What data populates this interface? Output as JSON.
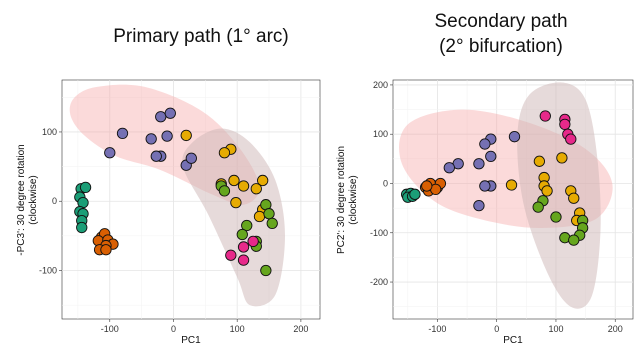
{
  "chart_data": [
    {
      "type": "scatter",
      "title": "Primary path (1° arc)",
      "xlabel": "PC1",
      "ylabel": [
        "-PC3': 30 degree rotation",
        "(clockwise)"
      ],
      "xlim": [
        -175,
        230
      ],
      "ylim": [
        -170,
        175
      ],
      "xticks": [
        -100,
        0,
        100,
        200
      ],
      "yticks": [
        -100,
        0,
        100
      ],
      "grid": true,
      "colors": {
        "teal": "#1b9e77",
        "orange": "#d95f02",
        "purple": "#7570b3",
        "pink": "#e7298a",
        "green": "#66a61e",
        "yellow": "#e6ab02"
      },
      "ellipses": [
        {
          "color": "#f4a3a3",
          "opacity": 0.4,
          "points": [
            [
              -155,
              150
            ],
            [
              -120,
              165
            ],
            [
              -45,
              165
            ],
            [
              45,
              130
            ],
            [
              105,
              75
            ],
            [
              135,
              20
            ],
            [
              110,
              -5
            ],
            [
              60,
              10
            ],
            [
              -20,
              45
            ],
            [
              -90,
              65
            ],
            [
              -140,
              95
            ],
            [
              -162,
              125
            ]
          ]
        },
        {
          "color": "#cdb5b5",
          "opacity": 0.5,
          "points": [
            [
              75,
              105
            ],
            [
              120,
              85
            ],
            [
              160,
              30
            ],
            [
              175,
              -50
            ],
            [
              160,
              -135
            ],
            [
              120,
              -150
            ],
            [
              100,
              -110
            ],
            [
              55,
              -20
            ],
            [
              15,
              50
            ],
            [
              30,
              85
            ]
          ]
        }
      ],
      "series": [
        {
          "color": "teal",
          "points": [
            [
              -145,
              18
            ],
            [
              -138,
              20
            ],
            [
              -147,
              6
            ],
            [
              -142,
              -2
            ],
            [
              -147,
              -15
            ],
            [
              -142,
              -18
            ],
            [
              -144,
              -28
            ],
            [
              -144,
              -38
            ]
          ]
        },
        {
          "color": "orange",
          "points": [
            [
              -113,
              -52
            ],
            [
              -108,
              -47
            ],
            [
              -118,
              -57
            ],
            [
              -103,
              -56
            ],
            [
              -95,
              -62
            ],
            [
              -106,
              -64
            ],
            [
              -116,
              -70
            ],
            [
              -106,
              -70
            ]
          ]
        },
        {
          "color": "purple",
          "points": [
            [
              -20,
              122
            ],
            [
              -5,
              127
            ],
            [
              -80,
              98
            ],
            [
              -100,
              70
            ],
            [
              -35,
              90
            ],
            [
              -10,
              94
            ],
            [
              -20,
              65
            ],
            [
              -27,
              65
            ],
            [
              20,
              52
            ],
            [
              28,
              62
            ]
          ]
        },
        {
          "color": "yellow",
          "points": [
            [
              20,
              95
            ],
            [
              90,
              75
            ],
            [
              80,
              70
            ],
            [
              95,
              30
            ],
            [
              110,
              22
            ],
            [
              140,
              30
            ],
            [
              130,
              18
            ],
            [
              140,
              -12
            ],
            [
              135,
              -22
            ],
            [
              75,
              25
            ],
            [
              98,
              -2
            ]
          ]
        },
        {
          "color": "green",
          "points": [
            [
              75,
              22
            ],
            [
              80,
              15
            ],
            [
              145,
              -5
            ],
            [
              150,
              -18
            ],
            [
              155,
              -32
            ],
            [
              115,
              -35
            ],
            [
              108,
              -48
            ],
            [
              130,
              -58
            ],
            [
              130,
              -65
            ],
            [
              145,
              -100
            ]
          ]
        },
        {
          "color": "pink",
          "points": [
            [
              125,
              -58
            ],
            [
              110,
              -66
            ],
            [
              90,
              -78
            ],
            [
              110,
              -85
            ]
          ]
        }
      ]
    },
    {
      "type": "scatter",
      "title": [
        "Secondary path",
        "(2° bifurcation)"
      ],
      "xlabel": "PC1",
      "ylabel": [
        "PC2': 30 degree rotation",
        "(clockwise)"
      ],
      "xlim": [
        -175,
        230
      ],
      "ylim": [
        -275,
        210
      ],
      "xticks": [
        -100,
        0,
        100,
        200
      ],
      "yticks": [
        -200,
        -100,
        0,
        100,
        200
      ],
      "grid": true,
      "colors": {
        "teal": "#1b9e77",
        "orange": "#d95f02",
        "purple": "#7570b3",
        "pink": "#e7298a",
        "green": "#66a61e",
        "yellow": "#e6ab02"
      },
      "ellipses": [
        {
          "color": "#f4a3a3",
          "opacity": 0.4,
          "points": [
            [
              -150,
              120
            ],
            [
              -60,
              150
            ],
            [
              50,
              125
            ],
            [
              150,
              70
            ],
            [
              195,
              0
            ],
            [
              170,
              -70
            ],
            [
              90,
              -90
            ],
            [
              0,
              -80
            ],
            [
              -100,
              -40
            ],
            [
              -160,
              40
            ]
          ]
        },
        {
          "color": "#cdb5b5",
          "opacity": 0.5,
          "points": [
            [
              55,
              180
            ],
            [
              110,
              205
            ],
            [
              150,
              170
            ],
            [
              170,
              50
            ],
            [
              175,
              -100
            ],
            [
              160,
              -230
            ],
            [
              125,
              -250
            ],
            [
              85,
              -180
            ],
            [
              45,
              -40
            ],
            [
              35,
              100
            ]
          ]
        }
      ],
      "series": [
        {
          "color": "teal",
          "points": [
            [
              -152,
              -22
            ],
            [
              -145,
              -20
            ],
            [
              -150,
              -28
            ],
            [
              -142,
              -26
            ],
            [
              -138,
              -22
            ]
          ]
        },
        {
          "color": "orange",
          "points": [
            [
              -120,
              -8
            ],
            [
              -108,
              -4
            ],
            [
              -115,
              -15
            ],
            [
              -100,
              -8
            ],
            [
              -112,
              0
            ],
            [
              -95,
              0
            ],
            [
              -103,
              -12
            ],
            [
              -118,
              -5
            ]
          ]
        },
        {
          "color": "purple",
          "points": [
            [
              -10,
              90
            ],
            [
              -20,
              80
            ],
            [
              -65,
              40
            ],
            [
              -10,
              55
            ],
            [
              -80,
              32
            ],
            [
              -10,
              -5
            ],
            [
              -20,
              -5
            ],
            [
              -30,
              40
            ],
            [
              30,
              95
            ],
            [
              -30,
              -45
            ]
          ]
        },
        {
          "color": "pink",
          "points": [
            [
              82,
              137
            ],
            [
              115,
              130
            ],
            [
              115,
              120
            ],
            [
              120,
              100
            ],
            [
              125,
              90
            ]
          ]
        },
        {
          "color": "yellow",
          "points": [
            [
              110,
              52
            ],
            [
              72,
              45
            ],
            [
              80,
              12
            ],
            [
              80,
              -5
            ],
            [
              85,
              -15
            ],
            [
              25,
              -3
            ],
            [
              125,
              -15
            ],
            [
              130,
              -30
            ],
            [
              140,
              -60
            ],
            [
              135,
              -75
            ]
          ]
        },
        {
          "color": "green",
          "points": [
            [
              78,
              -35
            ],
            [
              70,
              -48
            ],
            [
              100,
              -68
            ],
            [
              145,
              -75
            ],
            [
              145,
              -90
            ],
            [
              140,
              -105
            ],
            [
              115,
              -110
            ],
            [
              130,
              -115
            ]
          ]
        }
      ]
    }
  ]
}
